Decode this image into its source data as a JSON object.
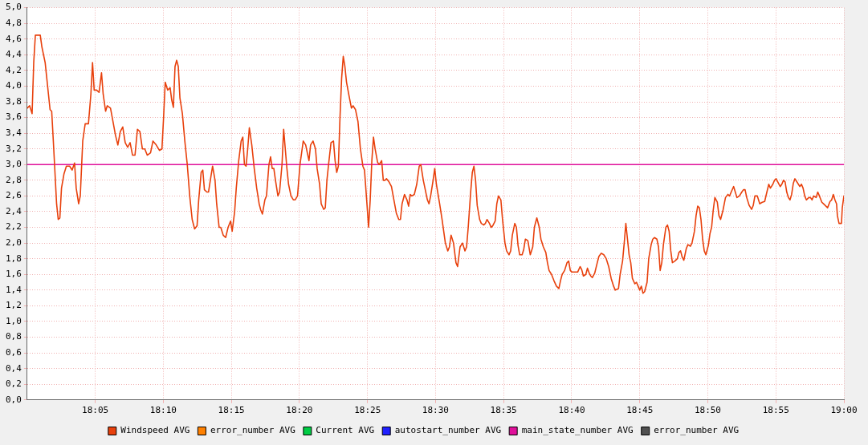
{
  "chart_data": {
    "type": "line",
    "legend": "bottom",
    "grid": true,
    "marker": "none",
    "line_style": "solid",
    "xlim": [
      18,
      19
    ],
    "ylim": [
      0,
      5
    ],
    "xticks": [
      {
        "value": 18.0833,
        "label": "18:05"
      },
      {
        "value": 18.1667,
        "label": "18:10"
      },
      {
        "value": 18.25,
        "label": "18:15"
      },
      {
        "value": 18.3333,
        "label": "18:20"
      },
      {
        "value": 18.4167,
        "label": "18:25"
      },
      {
        "value": 18.5,
        "label": "18:30"
      },
      {
        "value": 18.5833,
        "label": "18:35"
      },
      {
        "value": 18.6667,
        "label": "18:40"
      },
      {
        "value": 18.75,
        "label": "18:45"
      },
      {
        "value": 18.8333,
        "label": "18:50"
      },
      {
        "value": 18.9167,
        "label": "18:55"
      },
      {
        "value": 19,
        "label": "19:00"
      }
    ],
    "yticks": [
      {
        "value": 0,
        "label": "0,0"
      },
      {
        "value": 0.2,
        "label": "0,2"
      },
      {
        "value": 0.4,
        "label": "0,4"
      },
      {
        "value": 0.6,
        "label": "0,6"
      },
      {
        "value": 0.8,
        "label": "0,8"
      },
      {
        "value": 1,
        "label": "1,0"
      },
      {
        "value": 1.2,
        "label": "1,2"
      },
      {
        "value": 1.4,
        "label": "1,4"
      },
      {
        "value": 1.6,
        "label": "1,6"
      },
      {
        "value": 1.8,
        "label": "1,8"
      },
      {
        "value": 2,
        "label": "2,0"
      },
      {
        "value": 2.2,
        "label": "2,2"
      },
      {
        "value": 2.4,
        "label": "2,4"
      },
      {
        "value": 2.6,
        "label": "2,6"
      },
      {
        "value": 2.8,
        "label": "2,8"
      },
      {
        "value": 3,
        "label": "3,0"
      },
      {
        "value": 3.2,
        "label": "3,2"
      },
      {
        "value": 3.4,
        "label": "3,4"
      },
      {
        "value": 3.6,
        "label": "3,6"
      },
      {
        "value": 3.8,
        "label": "3,8"
      },
      {
        "value": 4,
        "label": "4,0"
      },
      {
        "value": 4.2,
        "label": "4,2"
      },
      {
        "value": 4.4,
        "label": "4,4"
      },
      {
        "value": 4.6,
        "label": "4,6"
      },
      {
        "value": 4.8,
        "label": "4,8"
      },
      {
        "value": 5,
        "label": "5,0"
      }
    ],
    "series": [
      {
        "name": "Windspeed AVG",
        "color": "#e8400c",
        "x": [
          18,
          18.003,
          18.006,
          18.008,
          18.01,
          18.016,
          18.018,
          18.022,
          18.026,
          18.028,
          18.03,
          18.032,
          18.034,
          18.036,
          18.038,
          18.04,
          18.042,
          18.045,
          18.048,
          18.052,
          18.055,
          18.058,
          18.06,
          18.063,
          18.065,
          18.068,
          18.071,
          18.075,
          18.078,
          18.08,
          18.082,
          18.085,
          18.088,
          18.091,
          18.093,
          18.096,
          18.098,
          18.102,
          18.105,
          18.108,
          18.111,
          18.114,
          18.117,
          18.12,
          18.123,
          18.126,
          18.129,
          18.132,
          18.135,
          18.138,
          18.141,
          18.144,
          18.147,
          18.151,
          18.154,
          18.158,
          18.162,
          18.165,
          18.167,
          18.169,
          18.172,
          18.175,
          18.177,
          18.179,
          18.181,
          18.183,
          18.185,
          18.187,
          18.19,
          18.193,
          18.196,
          18.199,
          18.202,
          18.205,
          18.208,
          18.21,
          18.213,
          18.215,
          18.217,
          18.22,
          18.222,
          18.225,
          18.227,
          18.23,
          18.232,
          18.235,
          18.237,
          18.24,
          18.243,
          18.246,
          18.249,
          18.251,
          18.254,
          18.256,
          18.259,
          18.262,
          18.264,
          18.266,
          18.268,
          18.27,
          18.272,
          18.275,
          18.278,
          18.281,
          18.284,
          18.286,
          18.288,
          18.291,
          18.293,
          18.296,
          18.298,
          18.3,
          18.302,
          18.304,
          18.307,
          18.309,
          18.312,
          18.314,
          18.316,
          18.318,
          18.32,
          18.323,
          18.326,
          18.328,
          18.331,
          18.334,
          18.336,
          18.338,
          18.341,
          18.343,
          18.345,
          18.347,
          18.35,
          18.353,
          18.355,
          18.358,
          18.36,
          18.363,
          18.365,
          18.367,
          18.369,
          18.372,
          18.375,
          18.377,
          18.379,
          18.381,
          18.383,
          18.385,
          18.387,
          18.389,
          18.391,
          18.394,
          18.397,
          18.399,
          18.402,
          18.405,
          18.408,
          18.411,
          18.413,
          18.416,
          18.418,
          18.42,
          18.422,
          18.424,
          18.426,
          18.429,
          18.431,
          18.434,
          18.436,
          18.438,
          18.44,
          18.443,
          18.446,
          18.449,
          18.452,
          18.455,
          18.457,
          18.459,
          18.462,
          18.465,
          18.467,
          18.469,
          18.471,
          18.474,
          18.477,
          18.48,
          18.482,
          18.485,
          18.487,
          18.49,
          18.492,
          18.494,
          18.497,
          18.499,
          18.501,
          18.505,
          18.508,
          18.512,
          18.515,
          18.517,
          18.519,
          18.522,
          18.525,
          18.527,
          18.53,
          18.533,
          18.536,
          18.538,
          18.54,
          18.543,
          18.545,
          18.547,
          18.549,
          18.551,
          18.554,
          18.556,
          18.559,
          18.561,
          18.563,
          18.566,
          18.568,
          18.57,
          18.573,
          18.575,
          18.577,
          18.58,
          18.582,
          18.585,
          18.587,
          18.59,
          18.592,
          18.594,
          18.597,
          18.599,
          18.601,
          18.603,
          18.606,
          18.608,
          18.61,
          18.613,
          18.616,
          18.619,
          18.621,
          18.624,
          18.627,
          18.629,
          18.632,
          18.635,
          18.637,
          18.639,
          18.642,
          18.645,
          18.648,
          18.651,
          18.653,
          18.655,
          18.658,
          18.661,
          18.663,
          18.665,
          18.667,
          18.671,
          18.674,
          18.677,
          18.679,
          18.681,
          18.684,
          18.686,
          18.688,
          18.69,
          18.692,
          18.695,
          18.698,
          18.7,
          18.703,
          18.706,
          18.709,
          18.712,
          18.715,
          18.718,
          18.72,
          18.724,
          18.726,
          18.729,
          18.731,
          18.733,
          18.735,
          18.737,
          18.739,
          18.741,
          18.744,
          18.746,
          18.748,
          18.75,
          18.752,
          18.754,
          18.756,
          18.759,
          18.761,
          18.764,
          18.766,
          18.768,
          18.771,
          18.773,
          18.775,
          18.777,
          18.779,
          18.782,
          18.784,
          18.786,
          18.788,
          18.79,
          18.793,
          18.796,
          18.798,
          18.8,
          18.802,
          18.804,
          18.807,
          18.809,
          18.812,
          18.814,
          18.817,
          18.819,
          18.821,
          18.823,
          18.825,
          18.827,
          18.829,
          18.831,
          18.834,
          18.836,
          18.838,
          18.84,
          18.842,
          18.845,
          18.847,
          18.849,
          18.852,
          18.855,
          18.858,
          18.86,
          18.862,
          18.865,
          18.867,
          18.869,
          18.872,
          18.875,
          18.877,
          18.879,
          18.881,
          18.884,
          18.887,
          18.889,
          18.891,
          18.894,
          18.897,
          18.9,
          18.903,
          18.905,
          18.908,
          18.91,
          18.913,
          18.915,
          18.917,
          18.919,
          18.922,
          18.924,
          18.926,
          18.928,
          18.93,
          18.932,
          18.934,
          18.936,
          18.938,
          18.94,
          18.943,
          18.946,
          18.948,
          18.95,
          18.952,
          18.954,
          18.957,
          18.959,
          18.961,
          18.963,
          18.966,
          18.968,
          18.97,
          18.973,
          18.975,
          18.977,
          18.98,
          18.983,
          18.985,
          18.987,
          18.989,
          18.991,
          18.992,
          18.994,
          18.997,
          18.998,
          19
        ],
        "values": [
          3.72,
          3.75,
          3.65,
          4.3,
          4.65,
          4.65,
          4.5,
          4.3,
          3.9,
          3.7,
          3.68,
          3.3,
          2.9,
          2.5,
          2.3,
          2.32,
          2.7,
          2.88,
          2.98,
          2.98,
          2.93,
          3.02,
          2.7,
          2.5,
          2.6,
          3.3,
          3.52,
          3.52,
          3.9,
          4.3,
          3.95,
          3.95,
          3.92,
          4.17,
          3.9,
          3.68,
          3.75,
          3.72,
          3.55,
          3.38,
          3.25,
          3.42,
          3.48,
          3.28,
          3.22,
          3.28,
          3.12,
          3.12,
          3.45,
          3.42,
          3.2,
          3.2,
          3.12,
          3.15,
          3.3,
          3.25,
          3.18,
          3.2,
          3.6,
          4.05,
          3.95,
          3.98,
          3.82,
          3.73,
          4.25,
          4.33,
          4.25,
          3.85,
          3.65,
          3.3,
          3.0,
          2.6,
          2.3,
          2.18,
          2.22,
          2.55,
          2.9,
          2.93,
          2.68,
          2.65,
          2.65,
          2.85,
          2.98,
          2.8,
          2.5,
          2.2,
          2.2,
          2.1,
          2.07,
          2.2,
          2.28,
          2.15,
          2.4,
          2.7,
          3.05,
          3.3,
          3.35,
          3.0,
          2.98,
          3.2,
          3.47,
          3.25,
          2.95,
          2.7,
          2.5,
          2.42,
          2.37,
          2.55,
          2.6,
          3.0,
          3.1,
          2.95,
          2.95,
          2.8,
          2.6,
          2.65,
          3.0,
          3.45,
          3.2,
          2.95,
          2.75,
          2.6,
          2.55,
          2.55,
          2.6,
          3.0,
          3.15,
          3.3,
          3.25,
          3.15,
          3.05,
          3.25,
          3.3,
          3.2,
          2.95,
          2.75,
          2.5,
          2.43,
          2.45,
          2.8,
          3.0,
          3.28,
          3.3,
          3.05,
          2.9,
          2.98,
          3.6,
          4.1,
          4.38,
          4.25,
          4.05,
          3.88,
          3.72,
          3.75,
          3.7,
          3.55,
          3.2,
          2.98,
          2.93,
          2.5,
          2.2,
          2.55,
          3.05,
          3.35,
          3.2,
          3.03,
          3.0,
          3.05,
          2.8,
          2.8,
          2.82,
          2.78,
          2.72,
          2.55,
          2.38,
          2.3,
          2.3,
          2.5,
          2.62,
          2.55,
          2.47,
          2.62,
          2.6,
          2.62,
          2.75,
          2.98,
          3.0,
          2.8,
          2.7,
          2.55,
          2.5,
          2.6,
          2.8,
          2.95,
          2.75,
          2.5,
          2.3,
          2.0,
          1.9,
          1.95,
          2.1,
          2.0,
          1.75,
          1.7,
          1.95,
          2.0,
          1.9,
          1.95,
          2.2,
          2.65,
          2.9,
          2.98,
          2.8,
          2.48,
          2.3,
          2.25,
          2.23,
          2.25,
          2.3,
          2.25,
          2.2,
          2.22,
          2.28,
          2.5,
          2.6,
          2.55,
          2.3,
          2.0,
          1.9,
          1.85,
          1.9,
          2.1,
          2.25,
          2.2,
          1.97,
          1.85,
          1.85,
          1.92,
          2.05,
          2.03,
          1.85,
          1.95,
          2.2,
          2.32,
          2.2,
          2.05,
          1.95,
          1.88,
          1.75,
          1.65,
          1.6,
          1.52,
          1.45,
          1.42,
          1.52,
          1.6,
          1.65,
          1.75,
          1.77,
          1.65,
          1.63,
          1.63,
          1.63,
          1.7,
          1.66,
          1.58,
          1.6,
          1.68,
          1.62,
          1.58,
          1.56,
          1.62,
          1.75,
          1.83,
          1.87,
          1.85,
          1.8,
          1.7,
          1.55,
          1.45,
          1.4,
          1.42,
          1.6,
          1.77,
          2.0,
          2.25,
          2.05,
          1.85,
          1.75,
          1.55,
          1.48,
          1.5,
          1.45,
          1.4,
          1.45,
          1.36,
          1.38,
          1.5,
          1.8,
          1.98,
          2.05,
          2.07,
          2.05,
          1.95,
          1.65,
          1.75,
          1.98,
          2.2,
          2.23,
          2.15,
          1.9,
          1.75,
          1.77,
          1.8,
          1.88,
          1.9,
          1.82,
          1.78,
          1.93,
          1.98,
          1.96,
          2.0,
          2.15,
          2.35,
          2.47,
          2.45,
          2.3,
          2.05,
          1.9,
          1.85,
          1.97,
          2.12,
          2.2,
          2.42,
          2.58,
          2.52,
          2.35,
          2.3,
          2.42,
          2.58,
          2.62,
          2.6,
          2.65,
          2.72,
          2.65,
          2.58,
          2.6,
          2.65,
          2.68,
          2.68,
          2.58,
          2.48,
          2.43,
          2.48,
          2.6,
          2.6,
          2.5,
          2.52,
          2.53,
          2.62,
          2.75,
          2.7,
          2.75,
          2.8,
          2.82,
          2.78,
          2.72,
          2.75,
          2.8,
          2.78,
          2.65,
          2.58,
          2.55,
          2.62,
          2.76,
          2.82,
          2.77,
          2.72,
          2.75,
          2.7,
          2.6,
          2.55,
          2.58,
          2.58,
          2.55,
          2.6,
          2.58,
          2.65,
          2.6,
          2.52,
          2.5,
          2.48,
          2.45,
          2.53,
          2.55,
          2.62,
          2.55,
          2.5,
          2.35,
          2.25,
          2.25,
          2.45,
          2.6
        ]
      },
      {
        "name": "error_number AVG",
        "color": "#ff8000"
      },
      {
        "name": "Current AVG",
        "color": "#00cc44"
      },
      {
        "name": "autostart_number AVG",
        "color": "#2020ff"
      },
      {
        "name": "main_state_number AVG",
        "color": "#e0109a",
        "x": [
          18,
          19
        ],
        "values": [
          3,
          3
        ]
      },
      {
        "name": "error_number AVG",
        "color": "#505050"
      }
    ]
  }
}
